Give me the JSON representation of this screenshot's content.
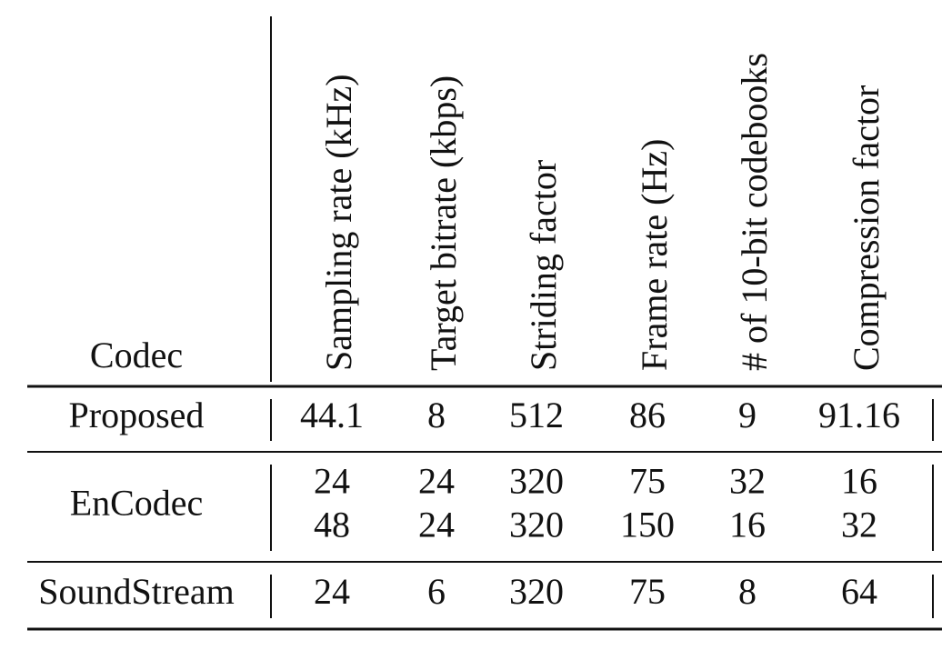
{
  "table": {
    "header": [
      "Codec",
      "Sampling rate (kHz)",
      "Target bitrate (kbps)",
      "Striding factor",
      "Frame rate (Hz)",
      "# of 10-bit codebooks",
      "Compression factor"
    ],
    "rows": [
      {
        "codec": "Proposed",
        "values": [
          [
            "44.1",
            "8",
            "512",
            "86",
            "9",
            "91.16"
          ]
        ]
      },
      {
        "codec": "EnCodec",
        "values": [
          [
            "24",
            "24",
            "320",
            "75",
            "32",
            "16"
          ],
          [
            "48",
            "24",
            "320",
            "150",
            "16",
            "32"
          ]
        ]
      },
      {
        "codec": "SoundStream",
        "values": [
          [
            "24",
            "6",
            "320",
            "75",
            "8",
            "64"
          ]
        ]
      }
    ]
  }
}
